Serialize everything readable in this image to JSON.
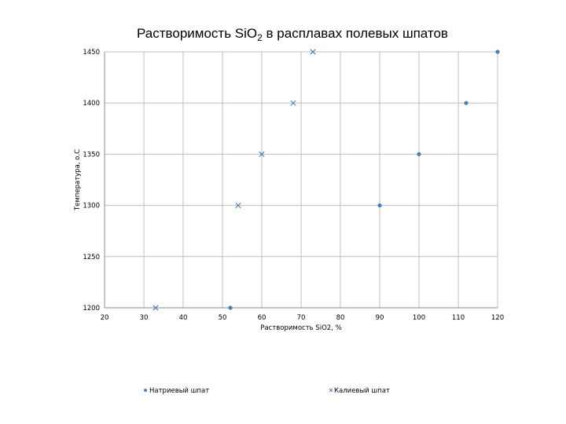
{
  "chart_data": {
    "type": "scatter",
    "title": "Растворимость SiO",
    "title_sub": "2",
    "title_rest": " в расплавах полевых шпатов",
    "xlabel": "Растворимость SiO2, %",
    "ylabel": "Температура, о.С",
    "xlim": [
      20,
      120
    ],
    "ylim": [
      1200,
      1450
    ],
    "x_ticks": [
      "20",
      "30",
      "40",
      "50",
      "60",
      "70",
      "80",
      "90",
      "100",
      "110",
      "120"
    ],
    "y_ticks": [
      "1200",
      "1250",
      "1300",
      "1350",
      "1400",
      "1450"
    ],
    "x_tick_values": [
      20,
      30,
      40,
      50,
      60,
      70,
      80,
      90,
      100,
      110,
      120
    ],
    "y_tick_values": [
      1200,
      1250,
      1300,
      1350,
      1400,
      1450
    ],
    "grid": true,
    "legend_position": "bottom",
    "series": [
      {
        "name": "Натриевый шпат",
        "marker": "dot",
        "color": "#4a7ebb",
        "points": [
          [
            52,
            1200
          ],
          [
            90,
            1300
          ],
          [
            100,
            1350
          ],
          [
            112,
            1400
          ],
          [
            120,
            1450
          ]
        ]
      },
      {
        "name": "Калиевый шпат",
        "marker": "x",
        "color": "#4a7ebb",
        "points": [
          [
            33,
            1200
          ],
          [
            54,
            1300
          ],
          [
            60,
            1350
          ],
          [
            68,
            1400
          ],
          [
            73,
            1450
          ]
        ]
      }
    ]
  }
}
